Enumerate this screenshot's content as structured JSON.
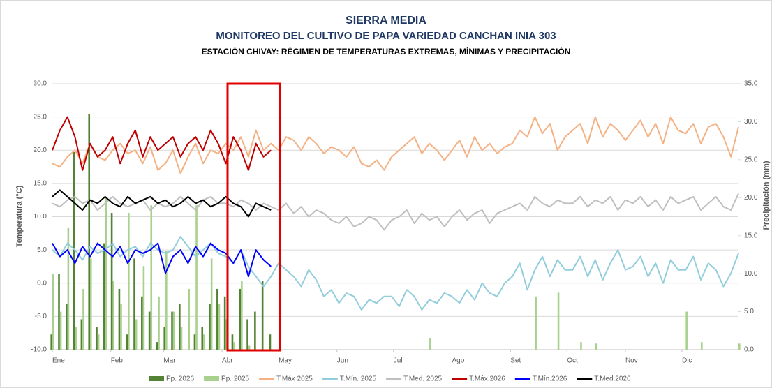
{
  "chart_data": {
    "type": "bar-line",
    "title": "SIERRA MEDIA",
    "subtitle": "MONITOREO DEL CULTIVO DE PAPA VARIEDAD CANCHAN INIA 303",
    "caption": "ESTACIÓN CHIVAY: RÉGIMEN DE TEMPERATURAS EXTREMAS, MÍNIMAS Y PRECIPITACIÓN",
    "ylabel": "Temperatura (°C)",
    "y2label": "Precipitación (mm)",
    "grid": true,
    "legend": "bottom",
    "x": [
      1,
      5,
      9,
      13,
      17,
      21,
      25,
      29,
      33,
      37,
      41,
      45,
      49,
      53,
      57,
      61,
      65,
      69,
      73,
      77,
      81,
      85,
      89,
      93,
      97,
      101,
      105,
      109,
      113,
      117,
      121,
      125,
      129,
      133,
      137,
      141,
      145,
      149,
      153,
      157,
      161,
      165,
      169,
      173,
      177,
      181,
      185,
      189,
      193,
      197,
      201,
      205,
      209,
      213,
      217,
      221,
      225,
      229,
      233,
      237,
      241,
      245,
      249,
      253,
      257,
      261,
      265,
      269,
      273,
      277,
      281,
      285,
      289,
      293,
      297,
      301,
      305,
      309,
      313,
      317,
      321,
      325,
      329,
      333,
      337,
      341,
      345,
      349,
      353,
      357,
      361,
      365
    ],
    "xlim": [
      1,
      365
    ],
    "xticks": [
      {
        "value": 1,
        "label": "Ene"
      },
      {
        "value": 32,
        "label": "Feb"
      },
      {
        "value": 60,
        "label": "Mar"
      },
      {
        "value": 91,
        "label": "Abr"
      },
      {
        "value": 121,
        "label": "May"
      },
      {
        "value": 152,
        "label": "Jun"
      },
      {
        "value": 182,
        "label": "Jul"
      },
      {
        "value": 213,
        "label": "Ago"
      },
      {
        "value": 244,
        "label": "Set"
      },
      {
        "value": 274,
        "label": "Oct"
      },
      {
        "value": 305,
        "label": "Nov"
      },
      {
        "value": 335,
        "label": "Dic"
      }
    ],
    "ylim": [
      -10,
      30
    ],
    "yticks": [
      {
        "value": -10,
        "label": "-10.0"
      },
      {
        "value": -5,
        "label": "-5.0"
      },
      {
        "value": 0,
        "label": "0.0"
      },
      {
        "value": 5,
        "label": "5.0"
      },
      {
        "value": 10,
        "label": "10.0"
      },
      {
        "value": 15,
        "label": "15.0"
      },
      {
        "value": 20,
        "label": "20.0"
      },
      {
        "value": 25,
        "label": "25.0"
      },
      {
        "value": 30,
        "label": "30.0"
      }
    ],
    "y2lim": [
      0,
      35
    ],
    "y2ticks": [
      {
        "value": 0,
        "label": "0.0"
      },
      {
        "value": 5,
        "label": "5.0"
      },
      {
        "value": 10,
        "label": "10.0"
      },
      {
        "value": 15,
        "label": "15.0"
      },
      {
        "value": 20,
        "label": "20.0"
      },
      {
        "value": 25,
        "label": "25.0"
      },
      {
        "value": 30,
        "label": "30.0"
      },
      {
        "value": 35,
        "label": "35.0"
      }
    ],
    "series": [
      {
        "name": "Pp. 2026",
        "kind": "bar",
        "axis": "y2",
        "color": "#548235",
        "values": [
          2,
          10,
          6,
          26,
          4,
          31,
          3,
          14,
          18,
          8,
          2,
          12,
          7,
          5,
          1,
          3,
          5,
          6,
          0,
          2,
          3,
          6,
          8,
          7,
          2,
          8,
          4,
          5,
          9,
          2,
          null,
          null,
          null,
          null,
          null,
          null,
          null,
          null,
          null,
          null,
          null,
          null,
          null,
          null,
          null,
          null,
          null,
          null,
          null,
          null,
          null,
          null,
          null,
          null,
          null,
          null,
          null,
          null,
          null,
          null,
          null,
          null,
          null,
          null,
          null,
          null,
          null,
          null,
          null,
          null,
          null,
          null,
          null,
          null,
          null,
          null,
          null,
          null,
          null,
          null,
          null,
          null,
          null,
          null,
          null,
          null,
          null,
          null,
          null,
          null,
          null,
          null
        ]
      },
      {
        "name": "Pp. 2025",
        "kind": "bar",
        "axis": "y2",
        "color": "#a9d18e",
        "values": [
          10,
          5,
          16,
          3,
          8,
          12,
          2,
          20,
          9,
          6,
          18,
          4,
          11,
          19,
          7,
          13,
          5,
          3,
          8,
          19,
          2,
          12,
          6,
          4,
          1,
          9,
          0.5,
          0,
          0,
          0,
          0,
          0,
          0,
          0,
          0,
          0,
          0,
          0,
          0,
          0,
          0,
          0,
          0,
          0,
          0,
          0,
          0,
          0,
          0,
          0,
          1.5,
          0,
          0,
          0,
          0,
          0,
          0,
          0,
          0,
          0,
          0,
          0,
          0,
          0,
          7,
          0,
          0,
          7.5,
          0,
          0,
          1,
          0,
          0.8,
          0,
          0,
          0,
          0,
          0,
          0,
          0,
          0,
          0,
          0,
          0,
          5,
          0,
          1,
          0,
          0,
          0,
          0,
          0.8
        ]
      },
      {
        "name": "T.Máx 2025",
        "kind": "line",
        "color": "#f4b183",
        "values": [
          18,
          17.5,
          19,
          20,
          18,
          21,
          19,
          18.5,
          20,
          21,
          19.5,
          20,
          18,
          20.5,
          17,
          18,
          20,
          16.5,
          19,
          21,
          18,
          20,
          19.5,
          21,
          20,
          22,
          19,
          23,
          20,
          21,
          20,
          22,
          21.5,
          20,
          22,
          21,
          19.5,
          20.5,
          20,
          19,
          20.5,
          18,
          17.5,
          18.5,
          17,
          19,
          20,
          21,
          22,
          19.5,
          21,
          20,
          18.5,
          20,
          21.5,
          19,
          22,
          20,
          21,
          19.5,
          20.5,
          21,
          23,
          22,
          25,
          22.5,
          24,
          20,
          22,
          23,
          24,
          21,
          25,
          22,
          24,
          23,
          21.5,
          23,
          24.5,
          22,
          24,
          21,
          25,
          23,
          22.5,
          24,
          21,
          23.5,
          24,
          22,
          19,
          23.5
        ]
      },
      {
        "name": "T.Mín. 2025",
        "kind": "line",
        "color": "#92cddc",
        "values": [
          5,
          4,
          6,
          5,
          3.5,
          5.5,
          4.5,
          5,
          6,
          4,
          5,
          5.5,
          4,
          6,
          5,
          4.5,
          5,
          7,
          5.5,
          4,
          5,
          6,
          4.5,
          4,
          3,
          5,
          2.5,
          1,
          -0.5,
          1,
          3,
          2,
          1,
          -0.5,
          2,
          0.5,
          -2,
          -1,
          -3,
          -1.5,
          -2,
          -4,
          -2.5,
          -3,
          -2,
          -2,
          -3.5,
          -1,
          -2,
          -4,
          -2.5,
          -3,
          -1.5,
          -2,
          -3,
          -1,
          -2.5,
          0,
          -1.5,
          -2,
          0,
          1,
          3,
          -1,
          2,
          4,
          1,
          3.5,
          2,
          2,
          4,
          1,
          3.5,
          0.5,
          3,
          5,
          2,
          2.5,
          4,
          1,
          3,
          0,
          3.5,
          2,
          2,
          4,
          0.5,
          3,
          2,
          -0.5,
          1.5,
          4.5
        ]
      },
      {
        "name": "T.Med. 2025",
        "kind": "line",
        "color": "#bfbfbf",
        "values": [
          12,
          11.5,
          12.5,
          13,
          12,
          12.5,
          11,
          12,
          13,
          12,
          11.5,
          12,
          12.5,
          11,
          12,
          11.5,
          12,
          13,
          12,
          11,
          12.5,
          13,
          12,
          12,
          11.5,
          12.5,
          12,
          11,
          12,
          11.5,
          11,
          12,
          10.5,
          11.5,
          10,
          11,
          10.5,
          9.5,
          9,
          10,
          8.5,
          9,
          10,
          9.5,
          8,
          9.5,
          10,
          11,
          9,
          10.5,
          9.5,
          10,
          8.5,
          10,
          11,
          9.5,
          10.5,
          11,
          9,
          10.5,
          11,
          11.5,
          12,
          11,
          13,
          12,
          11.5,
          12.5,
          12,
          12,
          13,
          11.5,
          12.5,
          12,
          13,
          11,
          12.5,
          12,
          13,
          11.5,
          12.5,
          11,
          13,
          12,
          12.5,
          13,
          11,
          12,
          13,
          11.5,
          11,
          13.5
        ]
      },
      {
        "name": "T.Máx.2026",
        "kind": "line",
        "color": "#c00000",
        "values": [
          20,
          23,
          25,
          22,
          17,
          21,
          19,
          20,
          22,
          18,
          21,
          23,
          19,
          22,
          20,
          21,
          22,
          19,
          21,
          22,
          20,
          23,
          21,
          18,
          22,
          20,
          17,
          21,
          19,
          20,
          null,
          null,
          null,
          null,
          null,
          null,
          null,
          null,
          null,
          null,
          null,
          null,
          null,
          null,
          null,
          null,
          null,
          null,
          null,
          null,
          null,
          null,
          null,
          null,
          null,
          null,
          null,
          null,
          null,
          null,
          null,
          null,
          null,
          null,
          null,
          null,
          null,
          null,
          null,
          null,
          null,
          null,
          null,
          null,
          null,
          null,
          null,
          null,
          null,
          null,
          null,
          null,
          null,
          null,
          null,
          null,
          null,
          null,
          null,
          null,
          null,
          null
        ]
      },
      {
        "name": "T.Mín.2026",
        "kind": "line",
        "color": "#0000ff",
        "values": [
          6,
          4,
          5,
          3,
          5.5,
          4,
          6,
          5,
          4,
          5.5,
          3,
          5,
          4.5,
          5,
          6,
          1.5,
          4,
          5,
          3,
          5.5,
          4,
          6,
          5,
          4.5,
          3,
          5,
          1,
          5,
          3.5,
          2.5,
          null,
          null,
          null,
          null,
          null,
          null,
          null,
          null,
          null,
          null,
          null,
          null,
          null,
          null,
          null,
          null,
          null,
          null,
          null,
          null,
          null,
          null,
          null,
          null,
          null,
          null,
          null,
          null,
          null,
          null,
          null,
          null,
          null,
          null,
          null,
          null,
          null,
          null,
          null,
          null,
          null,
          null,
          null,
          null,
          null,
          null,
          null,
          null,
          null,
          null,
          null,
          null,
          null,
          null,
          null,
          null,
          null,
          null,
          null,
          null,
          null,
          null
        ]
      },
      {
        "name": "T.Med.2026",
        "kind": "line",
        "color": "#000000",
        "values": [
          13,
          14,
          13,
          12,
          11,
          12.5,
          12,
          13,
          12,
          11.5,
          13,
          12,
          12.5,
          13,
          12,
          12.5,
          11.5,
          12,
          13,
          12,
          12.5,
          11.5,
          12,
          13,
          12,
          11.5,
          10,
          12,
          11.5,
          11,
          null,
          null,
          null,
          null,
          null,
          null,
          null,
          null,
          null,
          null,
          null,
          null,
          null,
          null,
          null,
          null,
          null,
          null,
          null,
          null,
          null,
          null,
          null,
          null,
          null,
          null,
          null,
          null,
          null,
          null,
          null,
          null,
          null,
          null,
          null,
          null,
          null,
          null,
          null,
          null,
          null,
          null,
          null,
          null,
          null,
          null,
          null,
          null,
          null,
          null,
          null,
          null,
          null,
          null,
          null,
          null,
          null,
          null,
          null,
          null,
          null,
          null
        ]
      }
    ]
  }
}
